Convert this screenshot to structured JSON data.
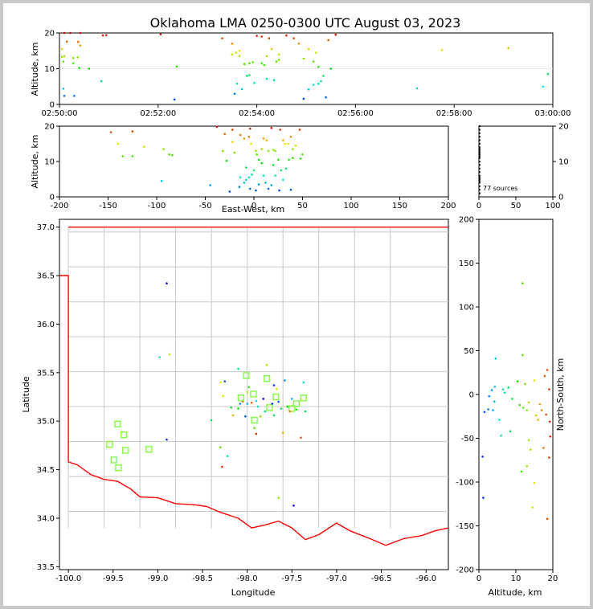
{
  "title": "Oklahoma LMA 0250-0300 UTC August 03, 2023",
  "source_count_label": "77 sources",
  "colors": {
    "frame": "#c8c8c8",
    "state_line": "#ff0000",
    "county_line": "#c8c8c8",
    "station": "#7fff40"
  },
  "chart_data": [
    {
      "id": "time-height",
      "type": "scatter",
      "ylabel": "Altitude, km",
      "ylim": [
        0,
        20
      ],
      "yticks": [
        0,
        10,
        20
      ],
      "xticks": [
        "02:50:00",
        "02:52:00",
        "02:54:00",
        "02:56:00",
        "02:58:00",
        "03:00:00"
      ],
      "xlim_minutes": [
        0,
        10
      ],
      "points_minutes_km": [
        [
          0.1,
          20.0
        ],
        [
          0.22,
          20.0
        ],
        [
          0.42,
          20.0
        ],
        [
          0.05,
          15.5
        ],
        [
          0.15,
          17.6
        ],
        [
          0.38,
          17.5
        ],
        [
          0.42,
          16.5
        ],
        [
          0.05,
          13.3
        ],
        [
          0.1,
          13.5
        ],
        [
          0.28,
          13.0
        ],
        [
          0.37,
          13.2
        ],
        [
          0.08,
          12.0
        ],
        [
          0.28,
          11.5
        ],
        [
          0.6,
          10.0
        ],
        [
          0.4,
          10.2
        ],
        [
          0.08,
          4.4
        ],
        [
          0.1,
          2.4
        ],
        [
          0.3,
          2.4
        ],
        [
          0.85,
          6.5
        ],
        [
          0.88,
          19.3
        ],
        [
          0.95,
          19.4
        ],
        [
          2.05,
          19.6
        ],
        [
          2.38,
          10.6
        ],
        [
          2.33,
          1.4
        ],
        [
          3.3,
          18.5
        ],
        [
          3.5,
          17.0
        ],
        [
          3.58,
          14.5
        ],
        [
          3.65,
          15.0
        ],
        [
          3.5,
          14.0
        ],
        [
          3.65,
          13.5
        ],
        [
          3.75,
          11.3
        ],
        [
          3.85,
          11.5
        ],
        [
          3.92,
          11.8
        ],
        [
          3.8,
          8.0
        ],
        [
          3.85,
          8.2
        ],
        [
          3.6,
          5.8
        ],
        [
          3.7,
          4.3
        ],
        [
          3.55,
          3.0
        ],
        [
          3.95,
          6.0
        ],
        [
          4.0,
          19.2
        ],
        [
          4.1,
          19.0
        ],
        [
          4.25,
          18.5
        ],
        [
          4.3,
          15.5
        ],
        [
          4.2,
          13.5
        ],
        [
          4.45,
          14.0
        ],
        [
          4.45,
          12.5
        ],
        [
          4.1,
          11.5
        ],
        [
          4.15,
          11.0
        ],
        [
          4.2,
          7.2
        ],
        [
          4.35,
          6.8
        ],
        [
          4.4,
          12.0
        ],
        [
          4.6,
          19.3
        ],
        [
          4.75,
          18.5
        ],
        [
          4.85,
          17.0
        ],
        [
          4.95,
          12.8
        ],
        [
          5.05,
          15.5
        ],
        [
          5.15,
          12.0
        ],
        [
          5.2,
          14.5
        ],
        [
          5.25,
          10.5
        ],
        [
          5.35,
          8.0
        ],
        [
          5.15,
          5.5
        ],
        [
          5.05,
          4.2
        ],
        [
          4.95,
          1.6
        ],
        [
          5.25,
          5.8
        ],
        [
          5.4,
          2.0
        ],
        [
          5.45,
          18.0
        ],
        [
          5.6,
          19.5
        ],
        [
          5.5,
          10.0
        ],
        [
          5.3,
          6.5
        ],
        [
          7.25,
          4.5
        ],
        [
          7.75,
          15.2
        ],
        [
          9.1,
          15.8
        ],
        [
          9.9,
          8.5
        ],
        [
          9.8,
          5.0
        ]
      ]
    },
    {
      "id": "ew-alt",
      "type": "scatter",
      "xlabel": "East-West, km",
      "ylabel": "Altitude, km",
      "xlim": [
        -200,
        200
      ],
      "ylim": [
        0,
        20
      ],
      "xticks": [
        -200,
        -150,
        -100,
        -50,
        0,
        50,
        100,
        150,
        200
      ],
      "yticks": [
        0,
        10,
        20
      ],
      "points_km": [
        [
          -147,
          18.3
        ],
        [
          -125,
          18.5
        ],
        [
          -140,
          15.0
        ],
        [
          -135,
          11.5
        ],
        [
          -125,
          11.5
        ],
        [
          -113,
          14.2
        ],
        [
          -93,
          13.5
        ],
        [
          -87,
          12.0
        ],
        [
          -84,
          11.8
        ],
        [
          -95,
          4.5
        ],
        [
          -45,
          3.3
        ],
        [
          -38,
          19.8
        ],
        [
          -30,
          17.8
        ],
        [
          -22,
          19.0
        ],
        [
          -14,
          17.5
        ],
        [
          -10,
          16.5
        ],
        [
          -4,
          19.3
        ],
        [
          -5,
          17.0
        ],
        [
          -3,
          15.0
        ],
        [
          2,
          13.0
        ],
        [
          8,
          13.5
        ],
        [
          10,
          16.5
        ],
        [
          13,
          16.0
        ],
        [
          18,
          19.5
        ],
        [
          20,
          13.3
        ],
        [
          22,
          13.0
        ],
        [
          27,
          19.0
        ],
        [
          30,
          16.0
        ],
        [
          32,
          15.0
        ],
        [
          35,
          15.0
        ],
        [
          38,
          17.0
        ],
        [
          40,
          13.5
        ],
        [
          43,
          14.5
        ],
        [
          47,
          19.0
        ],
        [
          50,
          12.0
        ],
        [
          -32,
          13.0
        ],
        [
          -28,
          10.2
        ],
        [
          -22,
          15.5
        ],
        [
          -20,
          12.5
        ],
        [
          -14,
          5.5
        ],
        [
          -10,
          4.0
        ],
        [
          -8,
          8.3
        ],
        [
          -5,
          5.5
        ],
        [
          -2,
          6.3
        ],
        [
          0,
          7.5
        ],
        [
          3,
          12.0
        ],
        [
          5,
          10.5
        ],
        [
          8,
          9.5
        ],
        [
          10,
          6.0
        ],
        [
          12,
          4.0
        ],
        [
          15,
          13.0
        ],
        [
          18,
          3.3
        ],
        [
          20,
          9.0
        ],
        [
          22,
          6.0
        ],
        [
          25,
          10.5
        ],
        [
          28,
          7.5
        ],
        [
          30,
          4.8
        ],
        [
          33,
          8.0
        ],
        [
          36,
          10.5
        ],
        [
          38,
          2.0
        ],
        [
          40,
          11.0
        ],
        [
          -25,
          1.5
        ],
        [
          -15,
          2.8
        ],
        [
          -8,
          4.8
        ],
        [
          -4,
          2.3
        ],
        [
          2,
          1.8
        ],
        [
          5,
          3.5
        ],
        [
          15,
          2.3
        ],
        [
          26,
          1.8
        ],
        [
          48,
          10.8
        ]
      ]
    },
    {
      "id": "histogram",
      "type": "scatter",
      "xlim": [
        0,
        100
      ],
      "ylim": [
        0,
        20
      ],
      "xticks": [
        0,
        50,
        100
      ],
      "yticks": [
        0,
        10,
        20
      ],
      "points_count_km": [
        [
          1,
          20.0
        ],
        [
          1,
          19.0
        ],
        [
          1,
          18.0
        ],
        [
          1,
          17.0
        ],
        [
          1,
          16.0
        ],
        [
          1,
          15.0
        ],
        [
          1,
          14.0
        ],
        [
          1,
          13.5
        ],
        [
          1,
          13.0
        ],
        [
          1,
          12.5
        ],
        [
          1,
          12.0
        ],
        [
          1,
          11.5
        ],
        [
          1,
          11.0
        ],
        [
          1,
          10.0
        ],
        [
          1,
          9.0
        ],
        [
          1,
          8.0
        ],
        [
          1,
          7.0
        ],
        [
          1,
          6.0
        ],
        [
          1,
          5.5
        ],
        [
          1,
          5.0
        ],
        [
          1,
          4.5
        ],
        [
          1,
          4.0
        ],
        [
          1,
          3.0
        ],
        [
          1,
          2.0
        ],
        [
          1,
          1.0
        ]
      ]
    },
    {
      "id": "plan-view",
      "type": "scatter",
      "xlabel": "Longitude",
      "ylabel": "Latitude",
      "xlim": [
        -100.1,
        -95.75
      ],
      "ylim": [
        33.47,
        37.08
      ],
      "xticks": [
        "-100.0",
        "-99.5",
        "-99.0",
        "-98.5",
        "-98.0",
        "-97.5",
        "-97.0",
        "-96.5",
        "-96.0"
      ],
      "yticks": [
        "33.5",
        "34.0",
        "34.5",
        "35.0",
        "35.5",
        "36.0",
        "36.5",
        "37.0"
      ],
      "stations_lonlat": [
        [
          -99.45,
          34.97
        ],
        [
          -99.38,
          34.86
        ],
        [
          -99.54,
          34.76
        ],
        [
          -99.36,
          34.7
        ],
        [
          -99.49,
          34.6
        ],
        [
          -99.44,
          34.52
        ],
        [
          -99.1,
          34.71
        ],
        [
          -98.07,
          35.24
        ],
        [
          -98.01,
          35.47
        ],
        [
          -97.93,
          35.28
        ],
        [
          -97.78,
          35.44
        ],
        [
          -97.92,
          35.01
        ],
        [
          -97.75,
          35.14
        ],
        [
          -97.68,
          35.25
        ],
        [
          -97.5,
          35.13
        ],
        [
          -97.45,
          35.18
        ],
        [
          -97.37,
          35.24
        ]
      ],
      "points_lonlat": [
        [
          -98.9,
          36.42
        ],
        [
          -98.98,
          35.66
        ],
        [
          -98.87,
          35.69
        ],
        [
          -98.9,
          34.81
        ],
        [
          -98.4,
          35.01
        ],
        [
          -98.27,
          35.26
        ],
        [
          -98.25,
          35.41
        ],
        [
          -98.18,
          35.14
        ],
        [
          -98.16,
          35.06
        ],
        [
          -98.08,
          35.18
        ],
        [
          -98.1,
          35.13
        ],
        [
          -98.05,
          35.2
        ],
        [
          -98.0,
          35.18
        ],
        [
          -97.98,
          35.35
        ],
        [
          -97.95,
          35.19
        ],
        [
          -97.9,
          35.21
        ],
        [
          -97.92,
          34.93
        ],
        [
          -97.9,
          34.87
        ],
        [
          -97.88,
          35.15
        ],
        [
          -97.85,
          35.05
        ],
        [
          -97.82,
          35.23
        ],
        [
          -97.8,
          35.1
        ],
        [
          -97.78,
          35.58
        ],
        [
          -97.72,
          35.18
        ],
        [
          -97.7,
          35.06
        ],
        [
          -97.67,
          35.33
        ],
        [
          -97.65,
          35.2
        ],
        [
          -97.62,
          35.13
        ],
        [
          -97.6,
          34.88
        ],
        [
          -97.58,
          35.42
        ],
        [
          -97.55,
          35.15
        ],
        [
          -97.52,
          35.1
        ],
        [
          -97.5,
          35.23
        ],
        [
          -97.45,
          35.12
        ],
        [
          -97.4,
          34.83
        ],
        [
          -97.37,
          35.4
        ],
        [
          -98.3,
          34.73
        ],
        [
          -98.28,
          34.53
        ],
        [
          -98.22,
          34.64
        ],
        [
          -97.65,
          34.21
        ],
        [
          -97.48,
          34.13
        ],
        [
          -98.1,
          35.54
        ],
        [
          -98.0,
          35.3
        ],
        [
          -97.7,
          35.37
        ],
        [
          -97.35,
          35.1
        ],
        [
          -98.3,
          35.4
        ],
        [
          -98.02,
          35.05
        ]
      ]
    },
    {
      "id": "ns-alt",
      "type": "scatter",
      "xlabel": "Altitude, km",
      "ylabel": "North-South, km",
      "xlim": [
        0,
        20
      ],
      "ylim": [
        -200,
        200
      ],
      "xticks": [
        0,
        10,
        20
      ],
      "yticks": [
        -200,
        -150,
        -100,
        -50,
        0,
        50,
        100,
        150,
        200
      ],
      "points_km_km": [
        [
          11.8,
          127
        ],
        [
          4.5,
          41
        ],
        [
          11.8,
          45
        ],
        [
          1,
          -71
        ],
        [
          1.2,
          -118
        ],
        [
          2.8,
          -2
        ],
        [
          3.5,
          5
        ],
        [
          4.2,
          -8
        ],
        [
          4.3,
          9
        ],
        [
          5.5,
          -29
        ],
        [
          6,
          -47
        ],
        [
          6.5,
          6
        ],
        [
          8,
          8
        ],
        [
          8.5,
          -42
        ],
        [
          10.5,
          15
        ],
        [
          11,
          -12
        ],
        [
          11.5,
          -88
        ],
        [
          12,
          -15
        ],
        [
          12.5,
          12
        ],
        [
          13,
          -18
        ],
        [
          13,
          -82
        ],
        [
          13.5,
          -9
        ],
        [
          13.5,
          -52
        ],
        [
          14,
          -63
        ],
        [
          14.5,
          -129
        ],
        [
          15,
          -101
        ],
        [
          15,
          16
        ],
        [
          15.5,
          -24
        ],
        [
          16,
          -29
        ],
        [
          16.5,
          -11
        ],
        [
          17,
          -18
        ],
        [
          17.5,
          -61
        ],
        [
          17.8,
          21
        ],
        [
          18.5,
          28
        ],
        [
          18.5,
          -142
        ],
        [
          19,
          6
        ],
        [
          19.2,
          -31
        ],
        [
          19.3,
          -48
        ],
        [
          19,
          -72
        ],
        [
          18.2,
          -23
        ],
        [
          1.5,
          -20
        ],
        [
          2.5,
          -17
        ],
        [
          3.8,
          -18
        ],
        [
          7,
          2
        ],
        [
          9,
          -5
        ]
      ]
    }
  ]
}
